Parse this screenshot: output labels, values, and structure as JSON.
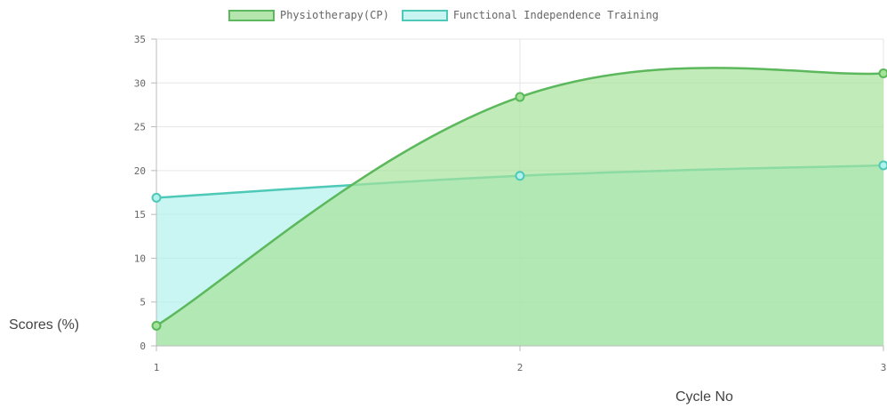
{
  "chart_data": {
    "type": "area",
    "x": [
      1,
      2,
      3
    ],
    "series": [
      {
        "name": "Physiotherapy(CP)",
        "values": [
          2.3,
          28.4,
          31.1
        ],
        "stroke": "#5cb85c",
        "fill": "#a6e39a"
      },
      {
        "name": "Functional Independence Training",
        "values": [
          16.9,
          19.4,
          20.6
        ],
        "stroke": "#4ec9b8",
        "fill": "#b2f1ec"
      }
    ],
    "xlabel": "Cycle No",
    "ylabel": "Scores (%)",
    "ylim": [
      0,
      35
    ],
    "yticks": [
      0,
      5,
      10,
      15,
      20,
      25,
      30,
      35
    ],
    "xticks": [
      "1",
      "2",
      "3"
    ],
    "grid": true,
    "legend_position": "top-center"
  }
}
